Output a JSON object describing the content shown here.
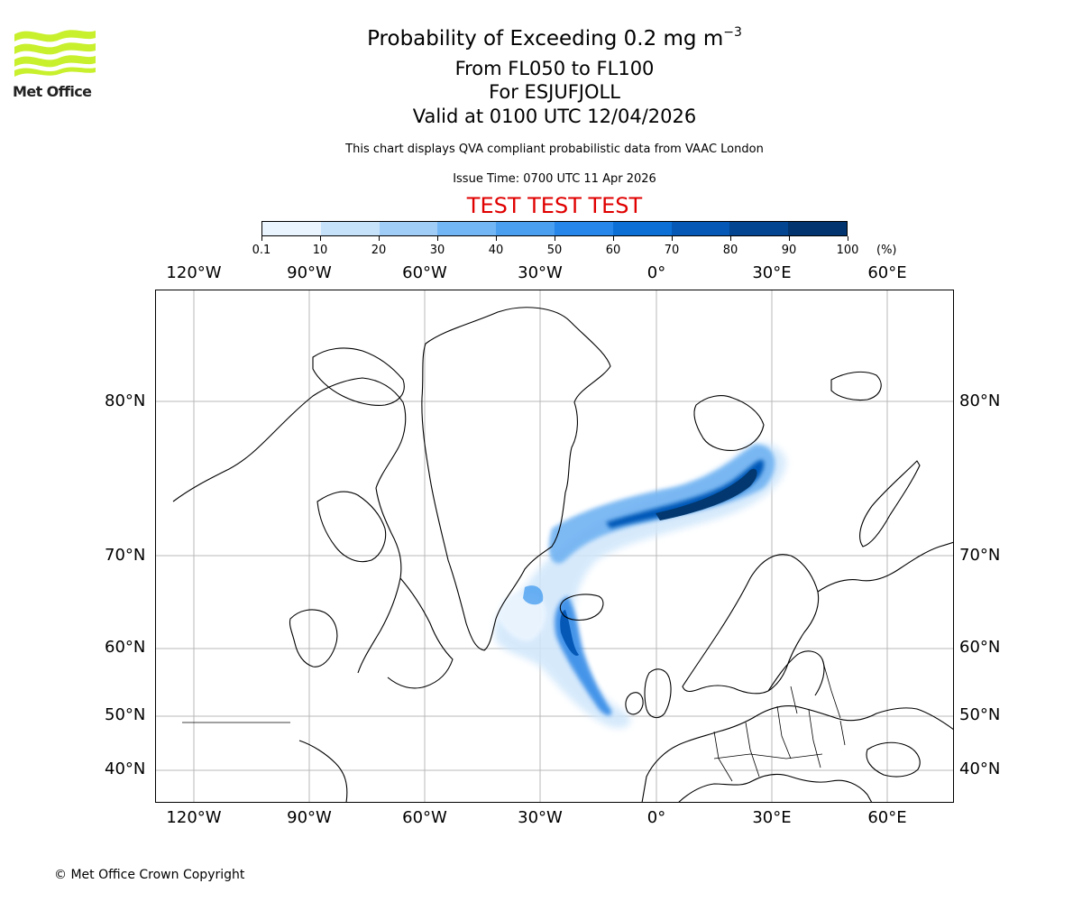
{
  "header": {
    "logo_text": "Met Office",
    "title_text": "Probability of Exceeding 0.2 mg m",
    "title_exponent": "−3",
    "line_levels": "From FL050 to FL100",
    "line_volcano": "For ESJUFJOLL",
    "line_valid": "Valid at 0100 UTC 12/04/2026",
    "qva_note": "This chart displays QVA compliant probabilistic data from VAAC London",
    "issue_time": "Issue Time: 0700 UTC 11 Apr 2026",
    "test_banner": "TEST TEST TEST"
  },
  "colorbar": {
    "labels": [
      "0.1",
      "10",
      "20",
      "30",
      "40",
      "50",
      "60",
      "70",
      "80",
      "90",
      "100"
    ],
    "unit": "(%)",
    "colors": [
      "#eaf4fe",
      "#c6e2fb",
      "#9fcdf8",
      "#73b6f5",
      "#4a9ff0",
      "#2686ea",
      "#0c6fd6",
      "#0558b5",
      "#034590",
      "#02356f"
    ]
  },
  "axes": {
    "lon_labels": [
      "120°W",
      "90°W",
      "60°W",
      "30°W",
      "0°",
      "30°E",
      "60°E"
    ],
    "lat_labels": [
      "80°N",
      "70°N",
      "60°N",
      "50°N",
      "40°N"
    ]
  },
  "map_data": {
    "region": "North Atlantic / Europe",
    "plume": "Ash probability plume from Iceland south to the British Isles and north-east towards Svalbard"
  },
  "footer": {
    "copyright": "© Met Office Crown Copyright"
  }
}
